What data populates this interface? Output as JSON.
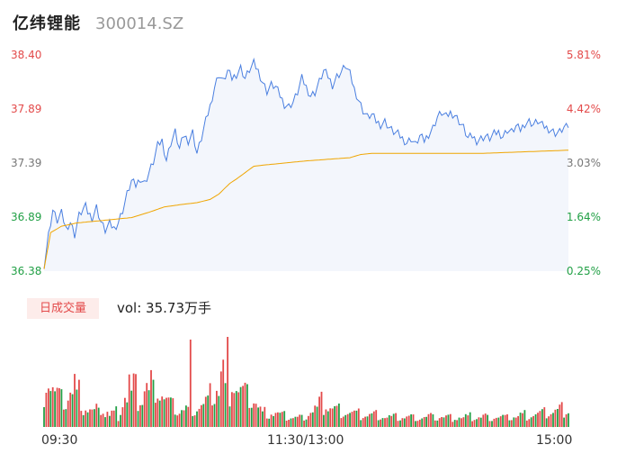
{
  "header": {
    "name": "亿纬锂能",
    "code": "300014.SZ"
  },
  "volume": {
    "tag": "日成交量",
    "text": "vol: 35.73万手"
  },
  "colors": {
    "price_line": "#4a7fe0",
    "avg_line": "#f0a500",
    "up": "#e34a4a",
    "down": "#22a046",
    "flat": "#777777",
    "area_fill": "#f3f6fc"
  },
  "chart_data": [
    {
      "type": "line",
      "title": "",
      "x_ticks": [
        "09:30",
        "11:30/13:00",
        "15:00"
      ],
      "y_left_ticks": [
        "38.40",
        "37.89",
        "37.39",
        "36.89",
        "36.38"
      ],
      "y_right_ticks": [
        "5.81%",
        "4.42%",
        "3.03%",
        "1.64%",
        "0.25%"
      ],
      "y_tick_roles": [
        "up",
        "up",
        "flat",
        "down",
        "down"
      ],
      "ylim": [
        36.38,
        38.4
      ],
      "n_points": 241,
      "series": [
        {
          "key": "price",
          "keyframes": [
            [
              0,
              36.4
            ],
            [
              2,
              36.72
            ],
            [
              4,
              36.95
            ],
            [
              6,
              36.85
            ],
            [
              8,
              36.92
            ],
            [
              10,
              36.78
            ],
            [
              12,
              36.84
            ],
            [
              14,
              36.72
            ],
            [
              16,
              36.9
            ],
            [
              18,
              36.96
            ],
            [
              19,
              36.98
            ],
            [
              20,
              36.93
            ],
            [
              22,
              36.88
            ],
            [
              24,
              36.98
            ],
            [
              26,
              36.84
            ],
            [
              28,
              36.76
            ],
            [
              30,
              36.82
            ],
            [
              32,
              36.78
            ],
            [
              34,
              36.84
            ],
            [
              36,
              36.95
            ],
            [
              38,
              37.1
            ],
            [
              40,
              37.22
            ],
            [
              42,
              37.18
            ],
            [
              44,
              37.25
            ],
            [
              46,
              37.2
            ],
            [
              48,
              37.3
            ],
            [
              50,
              37.4
            ],
            [
              52,
              37.55
            ],
            [
              54,
              37.6
            ],
            [
              56,
              37.42
            ],
            [
              58,
              37.58
            ],
            [
              60,
              37.68
            ],
            [
              62,
              37.52
            ],
            [
              64,
              37.65
            ],
            [
              66,
              37.6
            ],
            [
              68,
              37.68
            ],
            [
              70,
              37.48
            ],
            [
              72,
              37.62
            ],
            [
              74,
              37.78
            ],
            [
              76,
              37.92
            ],
            [
              78,
              38.1
            ],
            [
              80,
              38.22
            ],
            [
              82,
              38.15
            ],
            [
              84,
              38.25
            ],
            [
              86,
              38.18
            ],
            [
              88,
              38.22
            ],
            [
              90,
              38.28
            ],
            [
              92,
              38.18
            ],
            [
              94,
              38.26
            ],
            [
              96,
              38.32
            ],
            [
              98,
              38.25
            ],
            [
              100,
              38.15
            ],
            [
              102,
              38.06
            ],
            [
              104,
              38.12
            ],
            [
              106,
              38.1
            ],
            [
              108,
              38.02
            ],
            [
              110,
              37.94
            ],
            [
              112,
              37.92
            ],
            [
              114,
              37.96
            ],
            [
              116,
              38.05
            ],
            [
              118,
              38.18
            ],
            [
              120,
              38.1
            ],
            [
              122,
              38.02
            ],
            [
              124,
              38.05
            ],
            [
              126,
              38.15
            ],
            [
              128,
              38.25
            ],
            [
              130,
              38.2
            ],
            [
              132,
              38.12
            ],
            [
              134,
              38.2
            ],
            [
              136,
              38.24
            ],
            [
              138,
              38.3
            ],
            [
              140,
              38.22
            ],
            [
              142,
              38.08
            ],
            [
              144,
              37.98
            ],
            [
              146,
              37.88
            ],
            [
              148,
              37.82
            ],
            [
              150,
              37.84
            ],
            [
              152,
              37.78
            ],
            [
              154,
              37.75
            ],
            [
              156,
              37.78
            ],
            [
              158,
              37.72
            ],
            [
              160,
              37.68
            ],
            [
              162,
              37.66
            ],
            [
              164,
              37.62
            ],
            [
              166,
              37.58
            ],
            [
              168,
              37.62
            ],
            [
              170,
              37.56
            ],
            [
              172,
              37.64
            ],
            [
              174,
              37.6
            ],
            [
              176,
              37.66
            ],
            [
              178,
              37.72
            ],
            [
              180,
              37.82
            ],
            [
              182,
              37.86
            ],
            [
              184,
              37.82
            ],
            [
              186,
              37.86
            ],
            [
              188,
              37.84
            ],
            [
              190,
              37.78
            ],
            [
              192,
              37.72
            ],
            [
              194,
              37.62
            ],
            [
              196,
              37.64
            ],
            [
              198,
              37.6
            ],
            [
              200,
              37.62
            ],
            [
              202,
              37.64
            ],
            [
              204,
              37.62
            ],
            [
              206,
              37.66
            ],
            [
              208,
              37.68
            ],
            [
              210,
              37.64
            ],
            [
              212,
              37.7
            ],
            [
              214,
              37.68
            ],
            [
              216,
              37.73
            ],
            [
              218,
              37.7
            ],
            [
              220,
              37.76
            ],
            [
              222,
              37.78
            ],
            [
              224,
              37.75
            ],
            [
              226,
              37.78
            ],
            [
              228,
              37.74
            ],
            [
              230,
              37.72
            ],
            [
              232,
              37.7
            ],
            [
              234,
              37.67
            ],
            [
              236,
              37.68
            ],
            [
              238,
              37.72
            ],
            [
              240,
              37.72
            ]
          ]
        },
        {
          "key": "average",
          "keyframes": [
            [
              0,
              36.4
            ],
            [
              3,
              36.74
            ],
            [
              8,
              36.8
            ],
            [
              15,
              36.83
            ],
            [
              20,
              36.84
            ],
            [
              25,
              36.85
            ],
            [
              30,
              36.86
            ],
            [
              40,
              36.88
            ],
            [
              48,
              36.93
            ],
            [
              55,
              36.98
            ],
            [
              62,
              37.0
            ],
            [
              70,
              37.02
            ],
            [
              76,
              37.05
            ],
            [
              80,
              37.1
            ],
            [
              85,
              37.2
            ],
            [
              88,
              37.24
            ],
            [
              92,
              37.3
            ],
            [
              96,
              37.36
            ],
            [
              100,
              37.37
            ],
            [
              120,
              37.41
            ],
            [
              140,
              37.44
            ],
            [
              145,
              37.47
            ],
            [
              150,
              37.48
            ],
            [
              200,
              37.48
            ],
            [
              240,
              37.51
            ]
          ]
        }
      ]
    },
    {
      "type": "bar",
      "title": "",
      "series": [
        {
          "key": "volume_up",
          "keyframes": [
            [
              0,
              60
            ],
            [
              2,
              56
            ],
            [
              5,
              40
            ],
            [
              8,
              30
            ],
            [
              11,
              36
            ],
            [
              14,
              52
            ],
            [
              18,
              26
            ],
            [
              22,
              18
            ],
            [
              26,
              22
            ],
            [
              31,
              16
            ],
            [
              34,
              12
            ],
            [
              39,
              54
            ],
            [
              44,
              34
            ],
            [
              48,
              52
            ],
            [
              52,
              48
            ],
            [
              56,
              30
            ],
            [
              61,
              18
            ],
            [
              68,
              18
            ],
            [
              75,
              30
            ],
            [
              80,
              54
            ],
            [
              84,
              78
            ],
            [
              88,
              40
            ],
            [
              92,
              38
            ],
            [
              96,
              32
            ],
            [
              100,
              16
            ],
            [
              104,
              18
            ],
            [
              110,
              12
            ],
            [
              116,
              10
            ],
            [
              120,
              14
            ],
            [
              124,
              22
            ],
            [
              128,
              30
            ],
            [
              132,
              20
            ],
            [
              136,
              18
            ],
            [
              140,
              16
            ],
            [
              146,
              14
            ],
            [
              152,
              14
            ],
            [
              158,
              10
            ],
            [
              164,
              12
            ],
            [
              170,
              10
            ],
            [
              176,
              12
            ],
            [
              182,
              12
            ],
            [
              188,
              10
            ],
            [
              194,
              10
            ],
            [
              200,
              12
            ],
            [
              206,
              12
            ],
            [
              212,
              10
            ],
            [
              218,
              12
            ],
            [
              224,
              14
            ],
            [
              230,
              16
            ],
            [
              236,
              20
            ],
            [
              240,
              22
            ]
          ]
        },
        {
          "key": "volume_down",
          "keyframes": [
            [
              0,
              40
            ],
            [
              3,
              46
            ],
            [
              6,
              32
            ],
            [
              10,
              28
            ],
            [
              14,
              38
            ],
            [
              18,
              20
            ],
            [
              24,
              16
            ],
            [
              30,
              12
            ],
            [
              36,
              22
            ],
            [
              40,
              34
            ],
            [
              44,
              28
            ],
            [
              48,
              36
            ],
            [
              52,
              42
            ],
            [
              56,
              28
            ],
            [
              62,
              20
            ],
            [
              68,
              22
            ],
            [
              74,
              24
            ],
            [
              78,
              36
            ],
            [
              84,
              40
            ],
            [
              88,
              46
            ],
            [
              92,
              36
            ],
            [
              96,
              28
            ],
            [
              100,
              14
            ],
            [
              106,
              14
            ],
            [
              112,
              12
            ],
            [
              118,
              10
            ],
            [
              124,
              18
            ],
            [
              128,
              22
            ],
            [
              134,
              20
            ],
            [
              140,
              16
            ],
            [
              146,
              12
            ],
            [
              152,
              14
            ],
            [
              158,
              12
            ],
            [
              164,
              10
            ],
            [
              170,
              12
            ],
            [
              176,
              10
            ],
            [
              182,
              10
            ],
            [
              188,
              12
            ],
            [
              194,
              12
            ],
            [
              200,
              10
            ],
            [
              206,
              10
            ],
            [
              212,
              12
            ],
            [
              218,
              14
            ],
            [
              224,
              14
            ],
            [
              230,
              16
            ],
            [
              236,
              18
            ],
            [
              240,
              20
            ]
          ]
        }
      ]
    }
  ]
}
